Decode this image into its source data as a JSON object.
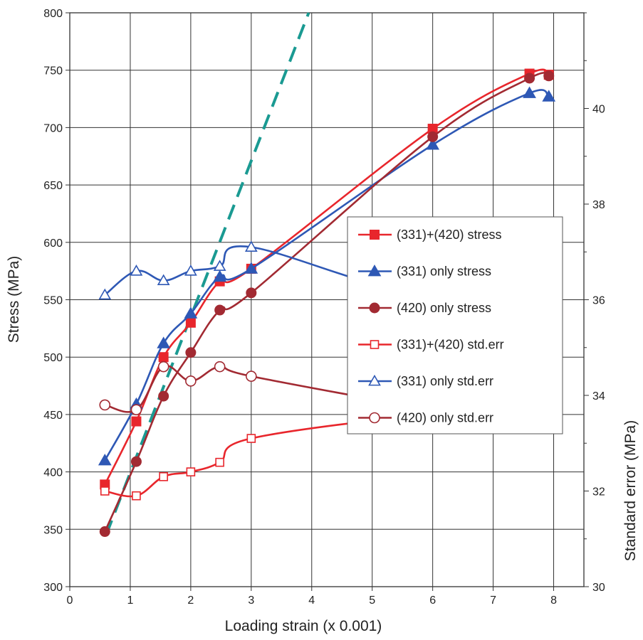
{
  "chart_data": {
    "type": "line",
    "xlabel": "Loading strain (x 0.001)",
    "ylabel": "Stress (MPa)",
    "y2label": "Standard error (MPa)",
    "xlim": [
      0,
      8.5
    ],
    "ylim": [
      300,
      800
    ],
    "y2lim": [
      30,
      42
    ],
    "x_ticks": [
      0,
      1,
      2,
      3,
      4,
      5,
      6,
      7,
      8
    ],
    "y_ticks": [
      300,
      350,
      400,
      450,
      500,
      550,
      600,
      650,
      700,
      750,
      800
    ],
    "y2_ticks": [
      30,
      32,
      34,
      36,
      38,
      40
    ],
    "grid": true,
    "legend_position": "center-right",
    "series": [
      {
        "name": "(331)+(420) stress",
        "axis": "left",
        "color": "#e8262c",
        "marker": "square",
        "filled": true,
        "x": [
          0.58,
          1.1,
          1.55,
          2.0,
          2.48,
          3.0,
          6.0,
          7.6,
          7.92
        ],
        "y": [
          389,
          444,
          500,
          530,
          566,
          577,
          699,
          747,
          746
        ]
      },
      {
        "name": "(331) only stress",
        "axis": "left",
        "color": "#2e58b5",
        "marker": "triangle",
        "filled": true,
        "x": [
          0.58,
          1.1,
          1.55,
          2.0,
          2.48,
          3.0,
          6.0,
          7.6,
          7.92
        ],
        "y": [
          410,
          459,
          512,
          538,
          570,
          577,
          685,
          730,
          727
        ]
      },
      {
        "name": "(420) only stress",
        "axis": "left",
        "color": "#a22a32",
        "marker": "circle",
        "filled": true,
        "x": [
          0.58,
          1.1,
          1.55,
          2.0,
          2.48,
          3.0,
          6.0,
          7.6,
          7.92
        ],
        "y": [
          348,
          409,
          466,
          504,
          541,
          556,
          692,
          743,
          745
        ]
      },
      {
        "name": "(331)+(420) std.err",
        "axis": "right",
        "color": "#e8262c",
        "marker": "square",
        "filled": false,
        "x": [
          0.58,
          1.1,
          1.55,
          2.0,
          2.48,
          3.0,
          6.0,
          7.6,
          7.92
        ],
        "y": [
          32.0,
          31.9,
          32.3,
          32.4,
          32.6,
          33.1,
          33.6,
          33.6,
          34.0
        ]
      },
      {
        "name": "(331) only std.err",
        "axis": "right",
        "color": "#2e58b5",
        "marker": "triangle",
        "filled": false,
        "x": [
          0.58,
          1.1,
          1.55,
          2.0,
          2.48,
          3.0,
          6.0,
          7.6,
          7.92
        ],
        "y": [
          36.1,
          36.6,
          36.4,
          36.6,
          36.7,
          37.1,
          36.1,
          37.1,
          37.1
        ]
      },
      {
        "name": "(420) only std.err",
        "axis": "right",
        "color": "#a22a32",
        "marker": "circle",
        "filled": false,
        "x": [
          0.58,
          1.1,
          1.55,
          2.0,
          2.48,
          3.0,
          6.0,
          7.6,
          7.92
        ],
        "y": [
          33.8,
          33.7,
          34.6,
          34.3,
          34.6,
          34.4,
          33.7,
          33.4,
          34.4
        ]
      }
    ],
    "reference_line": {
      "style": "dashed",
      "color": "#1a9a92",
      "x": [
        0.6,
        3.95
      ],
      "y": [
        345,
        800
      ]
    }
  }
}
